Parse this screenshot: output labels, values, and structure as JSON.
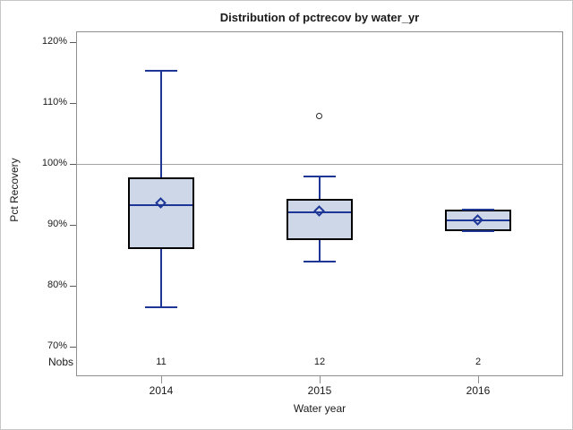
{
  "chart_data": {
    "type": "box",
    "title": "Distribution of pctrecov by water_yr",
    "xlabel": "Water year",
    "ylabel": "Pct Recovery",
    "nobs_label": "Nobs",
    "categories": [
      "2014",
      "2015",
      "2016"
    ],
    "yticks": [
      70,
      80,
      90,
      100,
      110,
      120
    ],
    "ytick_suffix": "%",
    "ylim": [
      65,
      122
    ],
    "refline_y": 100,
    "grid": "off",
    "legend": "none",
    "series": [
      {
        "category": "2014",
        "nobs": 11,
        "whisker_low": 76.4,
        "q1": 86.0,
        "median": 93.2,
        "q3": 97.8,
        "whisker_high": 115.3,
        "mean": 93.4,
        "outliers": []
      },
      {
        "category": "2015",
        "nobs": 12,
        "whisker_low": 84.0,
        "q1": 87.5,
        "median": 92.0,
        "q3": 94.3,
        "whisker_high": 98.0,
        "mean": 92.2,
        "outliers": [
          107.8
        ]
      },
      {
        "category": "2016",
        "nobs": 2,
        "whisker_low": 88.9,
        "q1": 88.9,
        "median": 90.7,
        "q3": 92.5,
        "whisker_high": 92.5,
        "mean": 90.7,
        "outliers": []
      }
    ],
    "colors": {
      "box_fill": "#cdd7e8",
      "line": "#1e3796",
      "box_border": "#000000",
      "outlier": "#2b2b2b",
      "refline": "#a3a3a3",
      "plot_border": "#8f8f8f",
      "text": "#1a1a1a"
    }
  }
}
